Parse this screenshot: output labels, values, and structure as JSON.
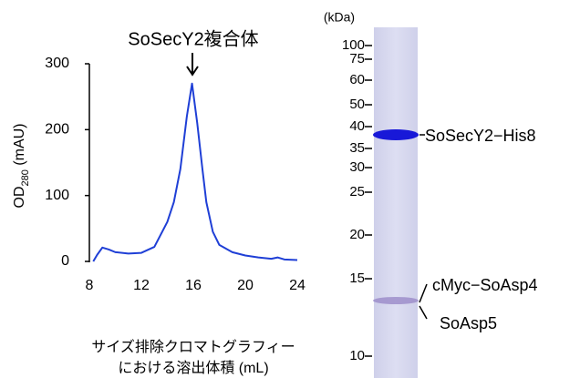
{
  "chart_data": {
    "type": "line",
    "title": "SoSecY2複合体",
    "ylabel": {
      "main": "OD",
      "sub": "280",
      "unit": " (mAU)"
    },
    "xlabel": [
      "サイズ排除クロマトグラフィー",
      "における溶出体積 (mL)"
    ],
    "x": [
      8.3,
      8.6,
      9,
      9.5,
      10,
      11,
      12,
      13,
      14,
      14.5,
      15,
      15.5,
      15.9,
      16.3,
      16.7,
      17,
      17.5,
      18,
      19,
      20,
      21,
      22,
      22.5,
      23,
      24
    ],
    "series": [
      {
        "color": "#1f3fd6",
        "values": [
          0,
          10,
          21,
          18,
          14,
          12,
          13,
          22,
          60,
          90,
          140,
          220,
          270,
          210,
          140,
          90,
          45,
          25,
          14,
          9,
          6,
          4,
          6,
          3,
          2
        ]
      }
    ],
    "xlim": [
      8,
      24
    ],
    "xticks": [
      8,
      12,
      16,
      20,
      24
    ],
    "ylim": [
      0,
      300
    ],
    "yticks": [
      0,
      100,
      200,
      300
    ]
  },
  "gel": {
    "unit": "(kDa)",
    "markers": [
      "100",
      "75",
      "60",
      "50",
      "40",
      "35",
      "30",
      "25",
      "20",
      "15",
      "10"
    ],
    "bands": [
      "SoSecY2−His8",
      "cMyc−SoAsp4",
      "SoAsp5"
    ]
  }
}
